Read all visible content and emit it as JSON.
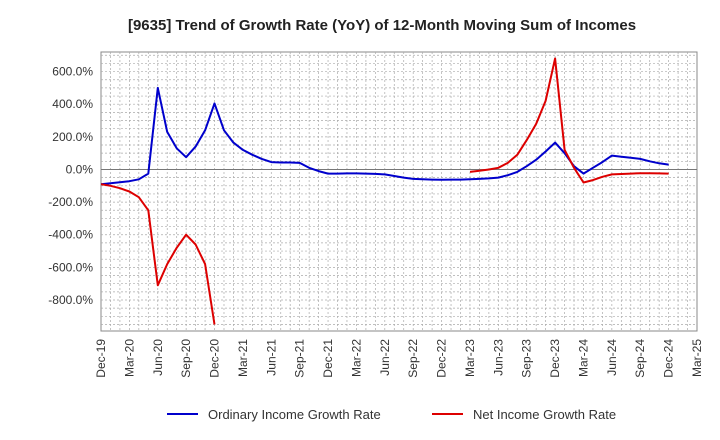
{
  "chart_data": {
    "type": "line",
    "title": "[9635]  Trend of Growth Rate (YoY) of 12-Month Moving Sum of Incomes",
    "xlabel": "",
    "ylabel": "",
    "x_ticks": [
      "Dec-19",
      "Mar-20",
      "Jun-20",
      "Sep-20",
      "Dec-20",
      "Mar-21",
      "Jun-21",
      "Sep-21",
      "Dec-21",
      "Mar-22",
      "Jun-22",
      "Sep-22",
      "Dec-22",
      "Mar-23",
      "Jun-23",
      "Sep-23",
      "Dec-23",
      "Mar-24",
      "Jun-24",
      "Sep-24",
      "Dec-24",
      "Mar-25"
    ],
    "y_ticks": [
      600,
      400,
      200,
      0,
      -200,
      -400,
      -600,
      -800
    ],
    "y_tick_labels": [
      "600.0%",
      "400.0%",
      "200.0%",
      "0.0%",
      "-200.0%",
      "-400.0%",
      "-600.0%",
      "-800.0%"
    ],
    "ylim": [
      -990,
      720
    ],
    "grid": true,
    "legend_position": "bottom",
    "series": [
      {
        "name": "Ordinary Income Growth Rate",
        "color": "#0000cc",
        "values": [
          -90,
          -85,
          -78,
          -72,
          -60,
          -25,
          500,
          230,
          130,
          75,
          140,
          240,
          405,
          240,
          165,
          120,
          90,
          65,
          45,
          43,
          43,
          40,
          10,
          -10,
          -25,
          -25,
          -24,
          -24,
          -25,
          -27,
          -30,
          -40,
          -50,
          -58,
          -60,
          -62,
          -63,
          -62,
          -62,
          -60,
          -58,
          -55,
          -50,
          -35,
          -15,
          20,
          60,
          110,
          165,
          100,
          20,
          -25,
          10,
          45,
          85,
          78,
          72,
          65,
          50,
          38,
          30
        ]
      },
      {
        "name": "Net Income Growth Rate",
        "color": "#dd0000",
        "values": [
          -90,
          -100,
          -115,
          -135,
          -170,
          -250,
          -710,
          -580,
          -480,
          -400,
          -460,
          -580,
          -950,
          null,
          null,
          null,
          null,
          null,
          null,
          null,
          null,
          null,
          null,
          null,
          null,
          null,
          null,
          null,
          null,
          null,
          null,
          null,
          null,
          null,
          null,
          null,
          null,
          null,
          null,
          -15,
          -8,
          0,
          10,
          40,
          90,
          180,
          280,
          420,
          680,
          120,
          10,
          -80,
          -65,
          -45,
          -30,
          -28,
          -25,
          -23,
          -23,
          -24,
          -25
        ]
      }
    ]
  }
}
